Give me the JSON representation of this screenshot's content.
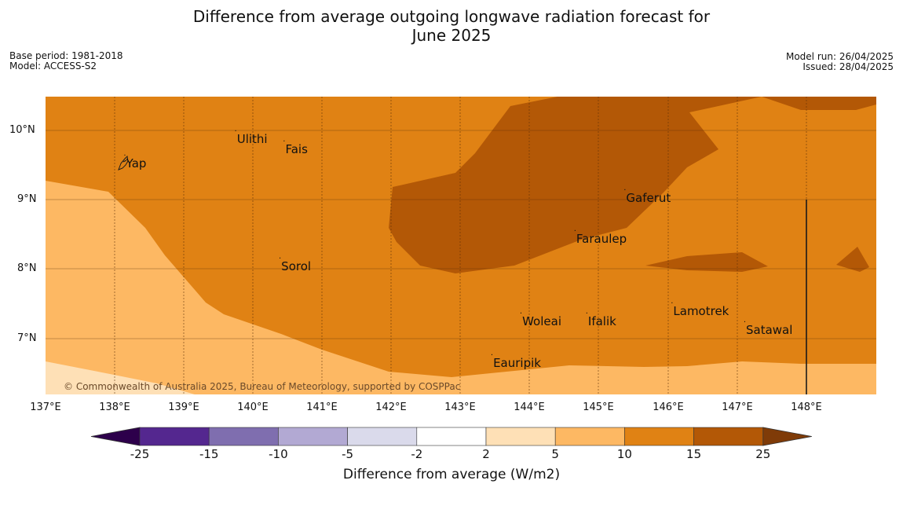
{
  "title_line1": "Difference from average outgoing longwave radiation forecast for",
  "title_line2": "June 2025",
  "base_period": "Base period: 1981-2018",
  "model": "Model: ACCESS-S2",
  "model_run": "Model run: 26/04/2025",
  "issued": "Issued: 28/04/2025",
  "copyright": "© Commonwealth of Australia 2025, Bureau of Meteorology, supported by COSPPac",
  "lat_labels": [
    "10°N",
    "9°N",
    "8°N",
    "7°N"
  ],
  "lon_labels": [
    "137°E",
    "138°E",
    "139°E",
    "140°E",
    "141°E",
    "142°E",
    "143°E",
    "144°E",
    "145°E",
    "146°E",
    "147°E",
    "148°E"
  ],
  "places": [
    {
      "name": "Ulithi",
      "lon": 139.75,
      "lat": 9.85
    },
    {
      "name": "Fais",
      "lon": 140.45,
      "lat": 9.7
    },
    {
      "name": "Yap",
      "lon": 138.15,
      "lat": 9.5
    },
    {
      "name": "Gaferut",
      "lon": 145.37,
      "lat": 9.0
    },
    {
      "name": "Faraulep",
      "lon": 144.65,
      "lat": 8.42
    },
    {
      "name": "Sorol",
      "lon": 140.39,
      "lat": 8.02
    },
    {
      "name": "Lamotrek",
      "lon": 146.05,
      "lat": 7.37
    },
    {
      "name": "Woleai",
      "lon": 143.87,
      "lat": 7.23
    },
    {
      "name": "Ifalik",
      "lon": 144.82,
      "lat": 7.23
    },
    {
      "name": "Satawal",
      "lon": 147.1,
      "lat": 7.1
    },
    {
      "name": "Eauripik",
      "lon": 143.45,
      "lat": 6.62
    }
  ],
  "colorbar": {
    "title": "Difference from average (W/m2)",
    "ticks": [
      "-25",
      "-15",
      "-10",
      "-5",
      "-2",
      "2",
      "5",
      "10",
      "15",
      "25"
    ],
    "colors": [
      "#54278f",
      "#7f6eaf",
      "#b2a9d3",
      "#dadaeb",
      "#ffffff",
      "#fee0b6",
      "#fdb863",
      "#e08214",
      "#b35806"
    ],
    "under_color": "#2d004b",
    "over_color": "#7f3b08"
  }
}
